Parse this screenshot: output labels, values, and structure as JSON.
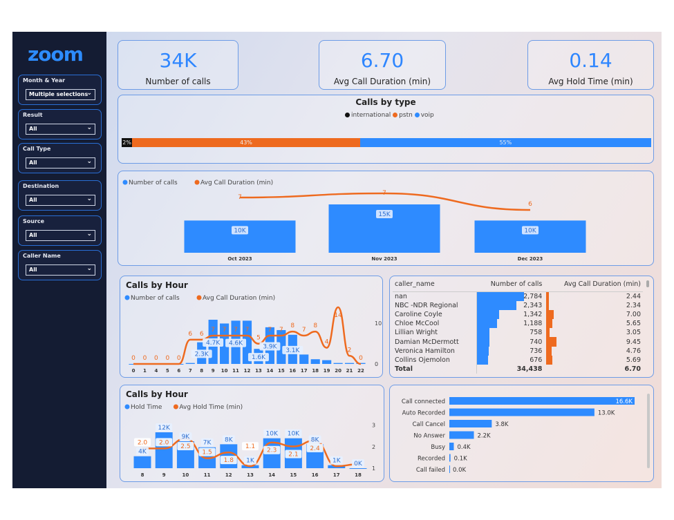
{
  "colors": {
    "blue": "#2e8bff",
    "orange": "#ee6a1f",
    "black": "#111111",
    "sidebar": "#141c33"
  },
  "logo": "zoom",
  "slicers": [
    {
      "label": "Month & Year",
      "value": "Multiple selections"
    },
    {
      "label": "Result",
      "value": "All"
    },
    {
      "label": "Call Type",
      "value": "All"
    },
    {
      "label": "Destination",
      "value": "All"
    },
    {
      "label": "Source",
      "value": "All"
    },
    {
      "label": "Caller Name",
      "value": "All"
    }
  ],
  "kpis": [
    {
      "value": "34K",
      "label": "Number of calls"
    },
    {
      "value": "6.70",
      "label": "Avg Call Duration (min)"
    },
    {
      "value": "0.14",
      "label": "Avg Hold Time (min)"
    }
  ],
  "calls_by_type": {
    "title": "Calls by type",
    "legend": [
      "international",
      "pstn",
      "voip"
    ],
    "segments": [
      {
        "name": "international",
        "pct": 2,
        "label": "2%"
      },
      {
        "name": "pstn",
        "pct": 43,
        "label": "43%"
      },
      {
        "name": "voip",
        "pct": 55,
        "label": "55%"
      }
    ]
  },
  "chart_data": [
    {
      "type": "bar",
      "legend": [
        "Number of calls",
        "Avg Call Duration (min)"
      ],
      "categories": [
        "Oct 2023",
        "Nov 2023",
        "Dec 2023"
      ],
      "series": [
        {
          "name": "Number of calls",
          "values": [
            10000,
            15000,
            10000
          ],
          "labels": [
            "10K",
            "15K",
            "10K"
          ]
        },
        {
          "name": "Avg Call Duration (min)",
          "values": [
            7,
            7,
            6
          ],
          "labels": [
            "7",
            "7",
            "6"
          ]
        }
      ]
    },
    {
      "type": "bar",
      "title": "Calls by Hour",
      "legend": [
        "Number of calls",
        "Avg Call Duration (min)"
      ],
      "categories": [
        "0",
        "1",
        "4",
        "5",
        "6",
        "7",
        "8",
        "9",
        "10",
        "11",
        "12",
        "13",
        "14",
        "15",
        "16",
        "17",
        "18",
        "19",
        "20",
        "21",
        "22"
      ],
      "series": [
        {
          "name": "Number of calls",
          "values": [
            0,
            0,
            0,
            0,
            0,
            100,
            2300,
            4700,
            4300,
            4600,
            4600,
            1600,
            3900,
            3600,
            3100,
            1000,
            500,
            400,
            100,
            100,
            100
          ],
          "labels": [
            "",
            "",
            "",
            "",
            "",
            "",
            "2.3K",
            "4.7K",
            "",
            "4.6K",
            "",
            "1.6K",
            "3.9K",
            "",
            "3.1K",
            "",
            "",
            "",
            "",
            "",
            ""
          ]
        },
        {
          "name": "Avg Call Duration (min)",
          "values": [
            0,
            0,
            0,
            0,
            0,
            6,
            6,
            7,
            7,
            7,
            7,
            5,
            7,
            7,
            8,
            7,
            8,
            4,
            14,
            2,
            0
          ]
        }
      ],
      "y2_ticks": [
        "0",
        "10"
      ]
    },
    {
      "type": "bar",
      "title": "Calls by Hour",
      "legend": [
        "Hold Time",
        "Avg Hold Time (min)"
      ],
      "categories": [
        "8",
        "9",
        "10",
        "11",
        "12",
        "13",
        "14",
        "15",
        "16",
        "17",
        "18"
      ],
      "series": [
        {
          "name": "Hold Time",
          "values": [
            4000,
            12000,
            9000,
            7000,
            8000,
            1000,
            10000,
            10000,
            8000,
            1000,
            0
          ],
          "labels": [
            "4K",
            "12K",
            "9K",
            "7K",
            "8K",
            "1K",
            "10K",
            "10K",
            "8K",
            "1K",
            "0K"
          ]
        },
        {
          "name": "Avg Hold Time (min)",
          "values": [
            2.0,
            2.0,
            2.5,
            1.5,
            1.8,
            1.1,
            2.3,
            2.1,
            2.4,
            1.1,
            1.2
          ],
          "labels": [
            "2.0",
            "2.0",
            "2.5",
            "1.5",
            "1.8",
            "1.1",
            "2.3",
            "2.1",
            "2.4",
            "",
            ""
          ]
        }
      ],
      "y2_ticks": [
        "1",
        "2",
        "3"
      ]
    },
    {
      "type": "bar",
      "orientation": "horizontal",
      "categories": [
        "Call connected",
        "Auto Recorded",
        "Call Cancel",
        "No Answer",
        "Busy",
        "Recorded",
        "Call failed"
      ],
      "values": [
        16600,
        13000,
        3800,
        2200,
        400,
        100,
        0
      ],
      "labels": [
        "16.6K",
        "13.0K",
        "3.8K",
        "2.2K",
        "0.4K",
        "0.1K",
        "0.0K"
      ]
    }
  ],
  "table": {
    "headers": [
      "caller_name",
      "Number of calls",
      "Avg Call Duration (min)"
    ],
    "rows": [
      [
        "nan",
        "2,784",
        "2.44"
      ],
      [
        "NBC -NDR Regional",
        "2,343",
        "2.34"
      ],
      [
        "Caroline Coyle",
        "1,342",
        "7.00"
      ],
      [
        "Chloe McCool",
        "1,188",
        "5.65"
      ],
      [
        "Lillian Wright",
        "758",
        "3.05"
      ],
      [
        "Damian McDermott",
        "740",
        "9.45"
      ],
      [
        "Veronica Hamilton",
        "736",
        "4.76"
      ],
      [
        "Collins Ojemolon",
        "676",
        "5.69"
      ]
    ],
    "total": [
      "Total",
      "34,438",
      "6.70"
    ]
  }
}
